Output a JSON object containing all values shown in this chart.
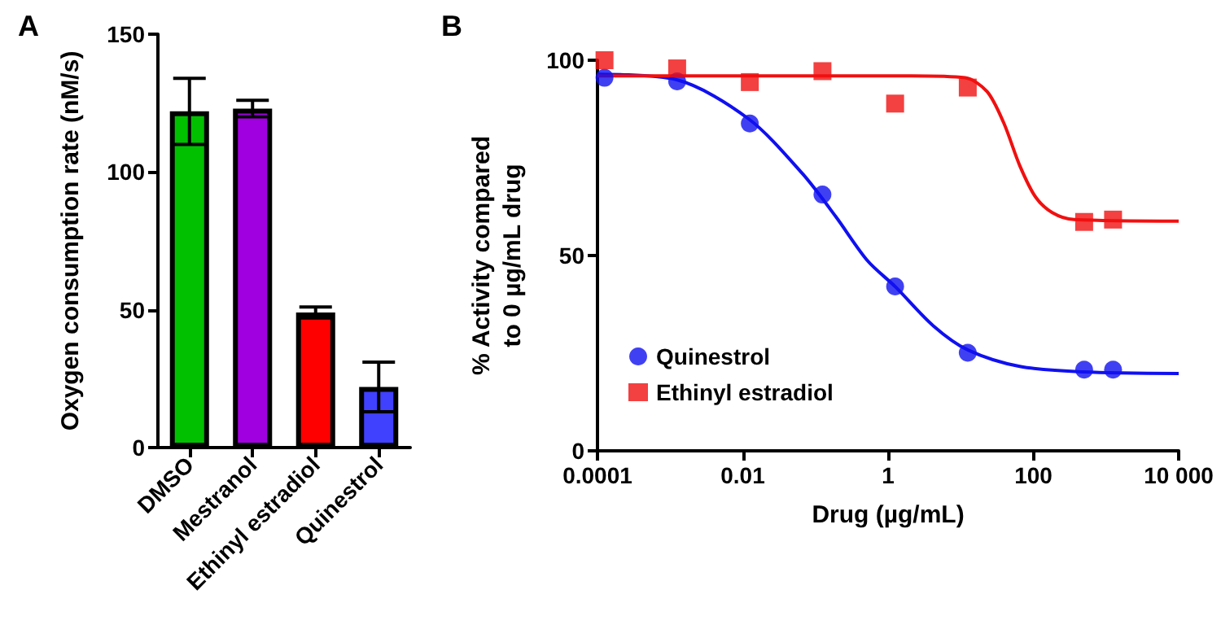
{
  "chart_data": [
    {
      "type": "bar",
      "title": "A",
      "ylabel": "Oxygen consumption rate (nM/s)",
      "categories": [
        "DMSO",
        "Mestranol",
        "Ethinyl estradiol",
        "Quinestrol"
      ],
      "values": [
        122,
        123,
        49,
        22
      ],
      "errors": [
        12,
        3,
        2,
        9
      ],
      "colors": [
        "#00c000",
        "#a000e0",
        "#ff0000",
        "#4040ff"
      ],
      "ylim": [
        0,
        150
      ],
      "yticks": [
        0,
        50,
        100,
        150
      ],
      "grid": false
    },
    {
      "type": "scatter",
      "title": "B",
      "xlabel": "Drug (µg/mL)",
      "ylabel": "% Activity compared\nto 0 µg/mL drug",
      "log": "x",
      "xlim": [
        0.0001,
        10000
      ],
      "xticks": [
        0.0001,
        0.01,
        1,
        100,
        {
          "value": 10000,
          "label": "10 000"
        }
      ],
      "ylim": [
        0,
        100
      ],
      "yticks": [
        0,
        50,
        100
      ],
      "grid": false,
      "legend": "bottom left",
      "series": [
        {
          "name": "Quinestrol",
          "type": "scatter",
          "marker": "circle",
          "color": "#1010f0",
          "x": [
            0.000125,
            0.00125,
            0.0125,
            0.125,
            1.25,
            12.5,
            500,
            1250
          ],
          "values": [
            95.5,
            94.6,
            83.8,
            65.6,
            42.1,
            25.1,
            20.8,
            20.8
          ]
        },
        {
          "name": "Ethinyl estradiol",
          "type": "scatter",
          "marker": "square",
          "color": "#f01010",
          "x": [
            0.000125,
            0.00125,
            0.0125,
            0.125,
            1.25,
            12.5,
            500,
            1250
          ],
          "values": [
            100,
            97.9,
            94.4,
            97.2,
            88.9,
            93.0,
            58.6,
            59.2
          ]
        },
        {
          "type": "line",
          "marker": "none",
          "color": "#1010f0",
          "x": [
            0.0001,
            0.00123,
            0.012,
            0.066,
            0.19,
            0.52,
            1.26,
            4.2,
            12.6,
            65,
            480,
            10000
          ],
          "values": [
            96.4,
            95,
            85,
            71,
            60,
            48.7,
            42,
            32,
            25.8,
            21.6,
            20.2,
            19.8
          ]
        },
        {
          "type": "line",
          "marker": "none",
          "color": "#f01010",
          "x": [
            0.0001,
            2.1,
            11.5,
            23,
            39,
            65,
            107,
            182,
            363,
            10000
          ],
          "values": [
            96,
            96,
            95.5,
            92,
            84,
            73,
            65,
            61,
            59.2,
            58.8
          ]
        }
      ]
    }
  ]
}
